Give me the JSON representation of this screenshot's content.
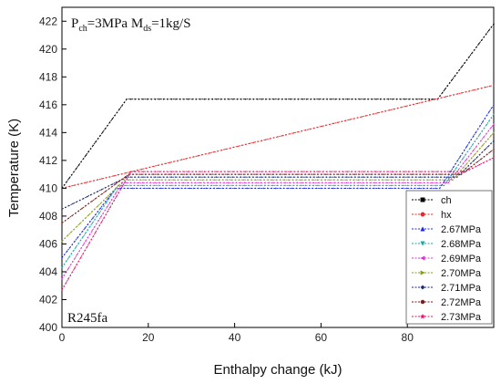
{
  "chart_data": {
    "type": "line",
    "title": "",
    "xlabel": "Enthalpy change (kJ)",
    "ylabel": "Temperature (K)",
    "xlim": [
      0,
      100
    ],
    "ylim": [
      400,
      423
    ],
    "xticks": [
      0,
      20,
      40,
      60,
      80
    ],
    "yticks": [
      400,
      402,
      404,
      406,
      408,
      410,
      412,
      414,
      416,
      418,
      420,
      422
    ],
    "grid": false,
    "legend_position": "bottom-right",
    "annotations": {
      "top_left": {
        "P": "P",
        "P_sub": "ch",
        "P_val": "=3MPa M",
        "M_sub": "ds",
        "M_val": "=1kg/S"
      },
      "bottom_left": "R245fa"
    },
    "series": [
      {
        "name": "ch",
        "color": "#000000",
        "marker": "square",
        "x": [
          0,
          15,
          87,
          100
        ],
        "y": [
          410,
          416.4,
          416.4,
          421.8
        ]
      },
      {
        "name": "hx",
        "color": "#e8262b",
        "marker": "circle",
        "x": [
          0,
          100
        ],
        "y": [
          410,
          417.4
        ]
      },
      {
        "name": "2.67MPa",
        "color": "#1f2be0",
        "marker": "triangle-up",
        "x": [
          0,
          12.5,
          87.5,
          100
        ],
        "y": [
          405,
          410,
          410,
          416
        ]
      },
      {
        "name": "2.68MPa",
        "color": "#1aa8a8",
        "marker": "triangle-down",
        "x": [
          0,
          13,
          88.5,
          100
        ],
        "y": [
          404.3,
          410.2,
          410.2,
          415.3
        ]
      },
      {
        "name": "2.69MPa",
        "color": "#e233d6",
        "marker": "triangle-left",
        "x": [
          0,
          14,
          89.5,
          100
        ],
        "y": [
          403.5,
          410.4,
          410.4,
          414.6
        ]
      },
      {
        "name": "2.70MPa",
        "color": "#8a9a1a",
        "marker": "triangle-right",
        "x": [
          0,
          14.5,
          90.5,
          100
        ],
        "y": [
          406.2,
          410.6,
          410.6,
          414
        ]
      },
      {
        "name": "2.71MPa",
        "color": "#1a2a7a",
        "marker": "diamond",
        "x": [
          0,
          15,
          91.5,
          100
        ],
        "y": [
          408.5,
          410.8,
          410.8,
          413.4
        ]
      },
      {
        "name": "2.72MPa",
        "color": "#7a1a1a",
        "marker": "hexagon",
        "x": [
          0,
          15.5,
          92.5,
          100
        ],
        "y": [
          407.5,
          411,
          411,
          412.8
        ]
      },
      {
        "name": "2.73MPa",
        "color": "#d81a6a",
        "marker": "star",
        "x": [
          0,
          16,
          93.5,
          100
        ],
        "y": [
          402.7,
          411.2,
          411.2,
          412.2
        ]
      }
    ]
  }
}
